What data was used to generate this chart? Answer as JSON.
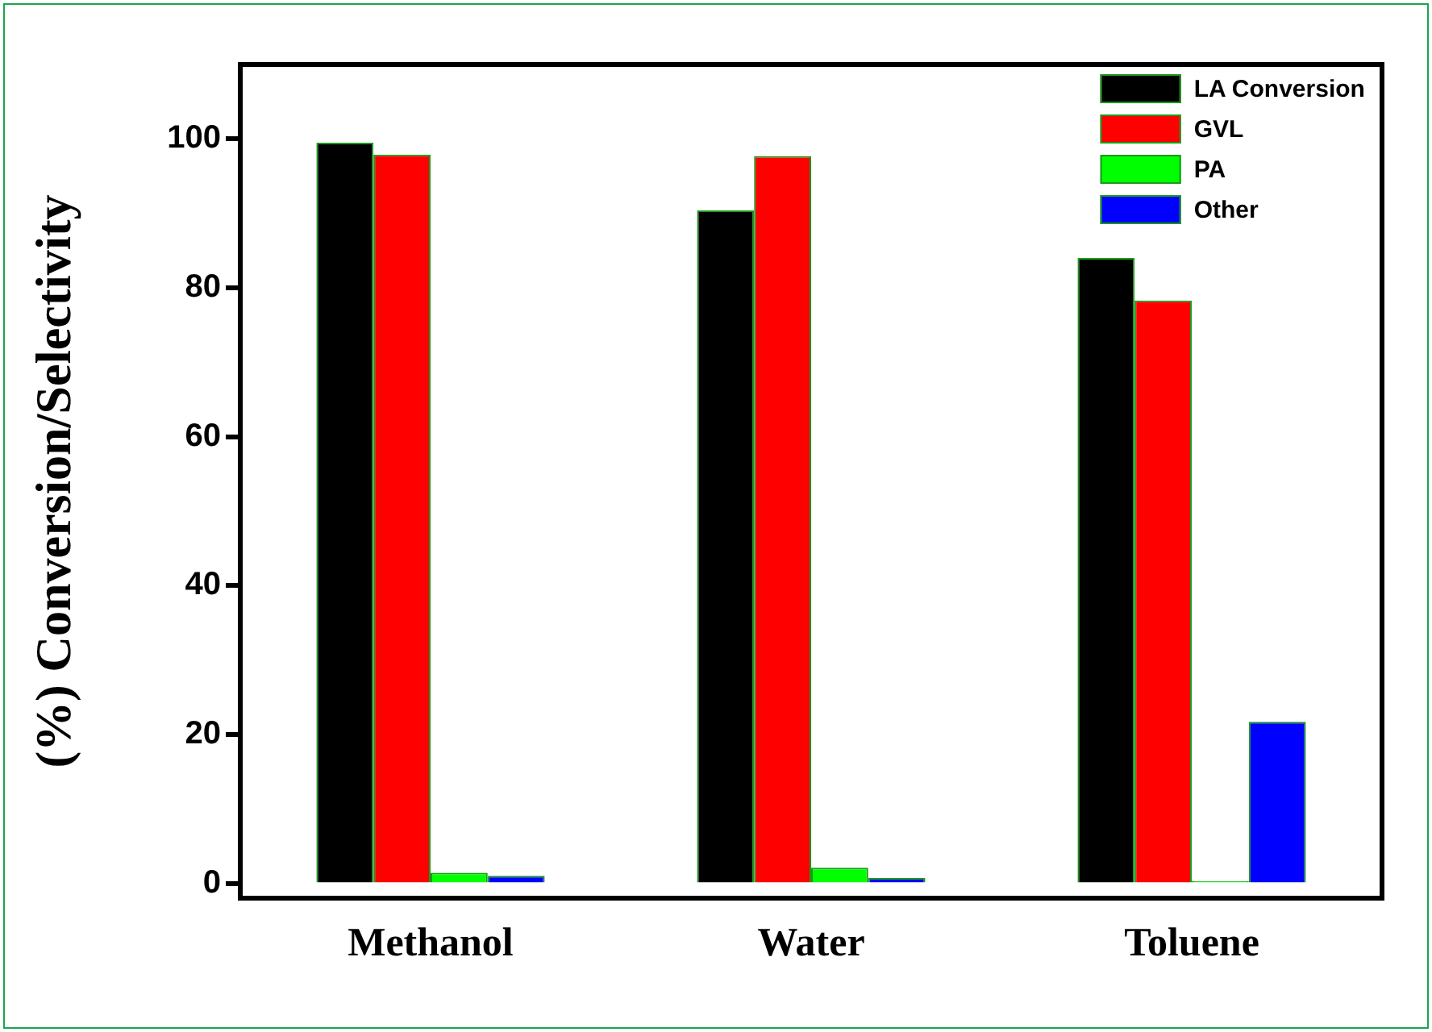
{
  "chart_data": {
    "type": "bar",
    "ylabel": "(%) Conversion/Selectivity",
    "categories": [
      "Methanol",
      "Water",
      "Toluene"
    ],
    "series": [
      {
        "name": "LA Conversion",
        "color": "#000000",
        "values": [
          99.5,
          90.4,
          84.0
        ]
      },
      {
        "name": "GVL",
        "color": "#ff0000",
        "values": [
          97.9,
          97.7,
          78.3
        ]
      },
      {
        "name": "PA",
        "color": "#00ff00",
        "values": [
          1.4,
          2.1,
          0.3
        ]
      },
      {
        "name": "Other",
        "color": "#0000ff",
        "values": [
          1.0,
          0.7,
          21.7
        ]
      }
    ],
    "ylim": [
      -2,
      110
    ],
    "yticks": [
      0,
      20,
      40,
      60,
      80,
      100
    ],
    "grid": false,
    "legend": "top right"
  }
}
